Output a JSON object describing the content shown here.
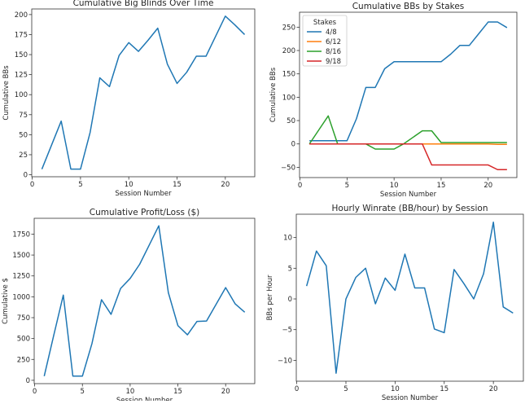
{
  "chart_data": [
    {
      "type": "line",
      "title": "Cumulative Big Blinds Over Time",
      "xlabel": "Session Number",
      "ylabel": "Cumulative BBs",
      "xlim": [
        -0.05,
        23.05
      ],
      "ylim": [
        -2.5,
        207
      ],
      "xticks": [
        0,
        5,
        10,
        15,
        20
      ],
      "yticks": [
        0,
        25,
        50,
        75,
        100,
        125,
        150,
        175,
        200
      ],
      "grid": false,
      "x": [
        1,
        2,
        3,
        4,
        5,
        6,
        7,
        8,
        9,
        10,
        11,
        12,
        13,
        14,
        15,
        16,
        17,
        18,
        19,
        20,
        21,
        22
      ],
      "series": [
        {
          "color": "#1f77b4",
          "values": [
            7,
            37,
            67,
            7,
            7,
            53,
            121,
            110,
            149,
            165,
            154,
            168,
            183,
            138,
            114,
            128,
            148,
            148,
            173,
            198,
            187,
            175
          ]
        }
      ]
    },
    {
      "type": "line",
      "title": "Cumulative BBs by Stakes",
      "xlabel": "Session Number",
      "ylabel": "Cumulative BBs",
      "xlim": [
        -0.05,
        23.05
      ],
      "ylim": [
        -72,
        282
      ],
      "xticks": [
        0,
        5,
        10,
        15,
        20
      ],
      "yticks": [
        -50,
        0,
        50,
        100,
        150,
        200,
        250
      ],
      "grid": false,
      "legend": {
        "title": "Stakes",
        "placement": "top-left"
      },
      "x": [
        1,
        2,
        3,
        4,
        5,
        6,
        7,
        8,
        9,
        10,
        11,
        12,
        13,
        14,
        15,
        16,
        17,
        18,
        19,
        20,
        21,
        22
      ],
      "series": [
        {
          "name": "4/8",
          "color": "#1f77b4",
          "values": [
            7,
            7,
            7,
            7,
            7,
            54,
            121,
            121,
            161,
            176,
            176,
            176,
            176,
            176,
            176,
            192,
            211,
            211,
            236,
            261,
            261,
            249
          ]
        },
        {
          "name": "6/12",
          "color": "#ff7f0e",
          "values": [
            0,
            0,
            0,
            0,
            0,
            0,
            0,
            0,
            0,
            0,
            0,
            0,
            0,
            0,
            0,
            0,
            0,
            0,
            0,
            0,
            -1,
            -1
          ]
        },
        {
          "name": "8/16",
          "color": "#2ca02c",
          "values": [
            0,
            30,
            60,
            0,
            0,
            0,
            0,
            -11,
            -11,
            -11,
            0,
            14,
            28,
            28,
            3,
            3,
            3,
            3,
            3,
            3,
            3,
            3
          ]
        },
        {
          "name": "9/18",
          "color": "#d62728",
          "values": [
            0,
            0,
            0,
            0,
            0,
            0,
            0,
            0,
            0,
            0,
            0,
            0,
            0,
            -45,
            -45,
            -45,
            -45,
            -45,
            -45,
            -45,
            -55,
            -55
          ]
        }
      ]
    },
    {
      "type": "line",
      "title": "Cumulative Profit/Loss ($)",
      "xlabel": "Session Number",
      "ylabel": "Cumulative $",
      "xlim": [
        -0.05,
        23.05
      ],
      "ylim": [
        -40,
        1940
      ],
      "xticks": [
        0,
        5,
        10,
        15,
        20
      ],
      "yticks": [
        0,
        250,
        500,
        750,
        1000,
        1250,
        1500,
        1750
      ],
      "grid": false,
      "x": [
        1,
        2,
        3,
        4,
        5,
        6,
        7,
        8,
        9,
        10,
        11,
        12,
        13,
        14,
        15,
        16,
        17,
        18,
        19,
        20,
        21,
        22
      ],
      "series": [
        {
          "color": "#1f77b4",
          "values": [
            50,
            540,
            1020,
            50,
            50,
            440,
            965,
            790,
            1100,
            1220,
            1390,
            1620,
            1850,
            1050,
            655,
            545,
            705,
            710,
            910,
            1110,
            915,
            815
          ]
        }
      ]
    },
    {
      "type": "line",
      "title": "Hourly Winrate (BB/hour) by Session",
      "xlabel": "Session Number",
      "ylabel": "BBs per Hour",
      "xlim": [
        -0.05,
        23.05
      ],
      "ylim": [
        -13.4,
        13.8
      ],
      "xticks": [
        0,
        5,
        10,
        15,
        20
      ],
      "yticks": [
        -10,
        -5,
        0,
        5,
        10
      ],
      "grid": false,
      "x": [
        1,
        2,
        3,
        4,
        5,
        6,
        7,
        8,
        9,
        10,
        11,
        12,
        13,
        14,
        15,
        16,
        17,
        18,
        19,
        20,
        21,
        22
      ],
      "series": [
        {
          "color": "#1f77b4",
          "values": [
            2.1,
            7.8,
            5.4,
            -12.1,
            0,
            3.5,
            5.0,
            -0.8,
            3.4,
            1.4,
            7.3,
            1.8,
            1.8,
            -4.9,
            -5.5,
            4.8,
            2.5,
            0,
            4.1,
            12.5,
            -1.3,
            -2.3
          ]
        }
      ]
    }
  ]
}
